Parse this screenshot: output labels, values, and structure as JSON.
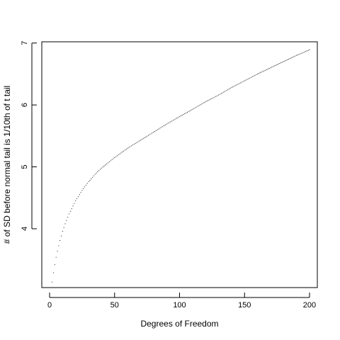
{
  "chart_data": {
    "type": "scatter",
    "title": "",
    "xlabel": "Degrees of Freedom",
    "ylabel": "# of SD before normal tail is 1/10th of t tail",
    "xlim": [
      -6,
      206
    ],
    "ylim": [
      3.05,
      7.02
    ],
    "xticks": [
      0,
      50,
      100,
      150,
      200
    ],
    "yticks": [
      4,
      5,
      6,
      7
    ],
    "grid": false,
    "legend": "none",
    "point_color": "#000000",
    "x": [
      2,
      3,
      4,
      5,
      6,
      8,
      10,
      12,
      15,
      20,
      25,
      30,
      35,
      40,
      50,
      60,
      70,
      80,
      90,
      100,
      110,
      120,
      130,
      140,
      150,
      160,
      170,
      180,
      190,
      200
    ],
    "y": [
      3.14,
      3.29,
      3.42,
      3.54,
      3.64,
      3.81,
      3.96,
      4.08,
      4.24,
      4.45,
      4.62,
      4.76,
      4.88,
      4.98,
      5.15,
      5.3,
      5.43,
      5.56,
      5.69,
      5.81,
      5.93,
      6.05,
      6.16,
      6.28,
      6.39,
      6.5,
      6.6,
      6.7,
      6.8,
      6.89
    ]
  }
}
